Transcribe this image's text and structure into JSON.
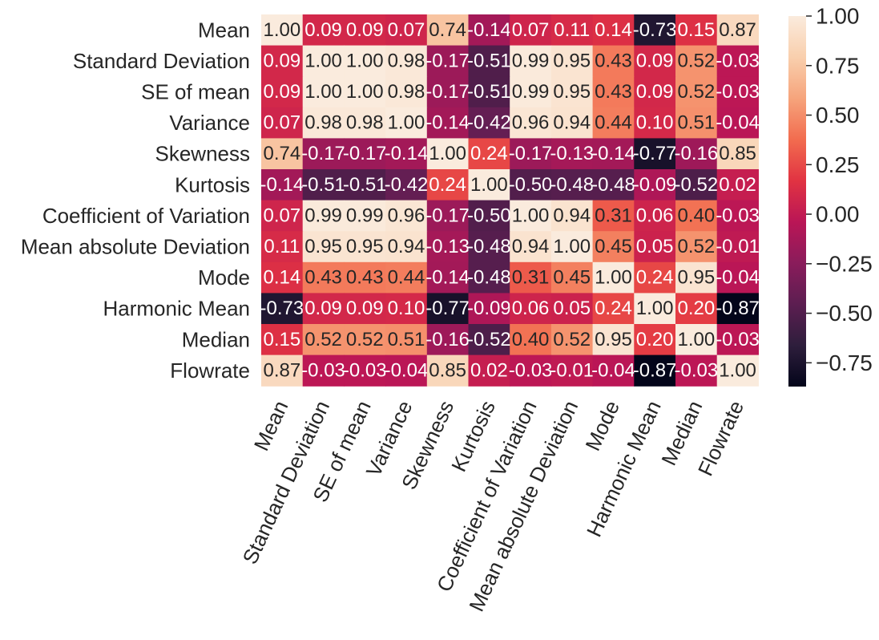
{
  "chart_data": {
    "type": "heatmap",
    "title": "",
    "xlabel": "",
    "ylabel": "",
    "labels": [
      "Mean",
      "Standard Deviation",
      "SE of mean",
      "Variance",
      "Skewness",
      "Kurtosis",
      "Coefficient of Variation",
      "Mean absolute Deviation",
      "Mode",
      "Harmonic Mean",
      "Median",
      "Flowrate"
    ],
    "matrix": [
      [
        1.0,
        0.09,
        0.09,
        0.07,
        0.74,
        -0.14,
        0.07,
        0.11,
        0.14,
        -0.73,
        0.15,
        0.87
      ],
      [
        0.09,
        1.0,
        1.0,
        0.98,
        -0.17,
        -0.51,
        0.99,
        0.95,
        0.43,
        0.09,
        0.52,
        -0.03
      ],
      [
        0.09,
        1.0,
        1.0,
        0.98,
        -0.17,
        -0.51,
        0.99,
        0.95,
        0.43,
        0.09,
        0.52,
        -0.03
      ],
      [
        0.07,
        0.98,
        0.98,
        1.0,
        -0.14,
        -0.42,
        0.96,
        0.94,
        0.44,
        0.1,
        0.51,
        -0.04
      ],
      [
        0.74,
        -0.17,
        -0.17,
        -0.14,
        1.0,
        0.24,
        -0.17,
        -0.13,
        -0.14,
        -0.77,
        -0.16,
        0.85
      ],
      [
        -0.14,
        -0.51,
        -0.51,
        -0.42,
        0.24,
        1.0,
        -0.5,
        -0.48,
        -0.48,
        -0.09,
        -0.52,
        0.02
      ],
      [
        0.07,
        0.99,
        0.99,
        0.96,
        -0.17,
        -0.5,
        1.0,
        0.94,
        0.31,
        0.06,
        0.4,
        -0.03
      ],
      [
        0.11,
        0.95,
        0.95,
        0.94,
        -0.13,
        -0.48,
        0.94,
        1.0,
        0.45,
        0.05,
        0.52,
        -0.01
      ],
      [
        0.14,
        0.43,
        0.43,
        0.44,
        -0.14,
        -0.48,
        0.31,
        0.45,
        1.0,
        0.24,
        0.95,
        -0.04
      ],
      [
        -0.73,
        0.09,
        0.09,
        0.1,
        -0.77,
        -0.09,
        0.06,
        0.05,
        0.24,
        1.0,
        0.2,
        -0.87
      ],
      [
        0.15,
        0.52,
        0.52,
        0.51,
        -0.16,
        -0.52,
        0.4,
        0.52,
        0.95,
        0.2,
        1.0,
        -0.03
      ],
      [
        0.87,
        -0.03,
        -0.03,
        -0.04,
        0.85,
        0.02,
        -0.03,
        -0.01,
        -0.04,
        -0.87,
        -0.03,
        1.0
      ]
    ],
    "value_format": "2 decimals",
    "colorbar": {
      "range": [
        -0.87,
        1.0
      ],
      "ticks": [
        1.0,
        0.75,
        0.5,
        0.25,
        0.0,
        -0.25,
        -0.5,
        -0.75
      ],
      "tick_labels": [
        "1.00",
        "0.75",
        "0.50",
        "0.25",
        "0.00",
        "−0.25",
        "−0.50",
        "−0.75"
      ],
      "colormap": "rocket",
      "colormap_stops": [
        "#03051a",
        "#2e1e3c",
        "#5c1e51",
        "#8a1c5b",
        "#ba1656",
        "#e13342",
        "#f26c4f",
        "#f6a47c",
        "#f9cfad",
        "#faebdd"
      ]
    },
    "x_tick_rotation": "65 degrees",
    "grid": false
  }
}
